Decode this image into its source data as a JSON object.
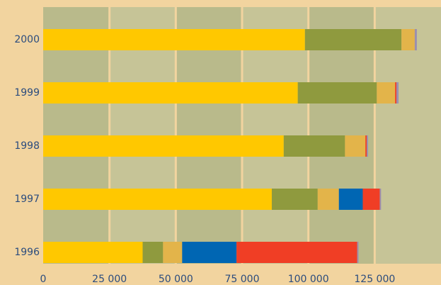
{
  "chart_data": {
    "type": "stacked-barh",
    "categories": [
      "1996",
      "1997",
      "1998",
      "1999",
      "2000"
    ],
    "series": [
      {
        "color": "#ffc800",
        "values": [
          37500,
          86200,
          90700,
          96000,
          98700
        ]
      },
      {
        "color": "#8f9a3e",
        "values": [
          7700,
          17300,
          23100,
          29800,
          36400
        ]
      },
      {
        "color": "#e3b44a",
        "values": [
          7200,
          8000,
          7700,
          6900,
          5000
        ]
      },
      {
        "color": "#0066b3",
        "values": [
          20500,
          9000,
          0,
          0,
          0
        ]
      },
      {
        "color": "#f03e25",
        "values": [
          45500,
          6400,
          500,
          500,
          0
        ]
      },
      {
        "color": "#9a8fb0",
        "values": [
          500,
          500,
          500,
          800,
          800
        ]
      }
    ],
    "xlim": [
      0,
      150000
    ],
    "xticks": [
      0,
      {
        "value": 25000,
        "label": "25 000"
      },
      {
        "value": 50000,
        "label": "50 000"
      },
      {
        "value": 75000,
        "label": "75 000"
      },
      {
        "value": 100000,
        "label": "100 000"
      },
      {
        "value": 125000,
        "label": "125 000"
      }
    ],
    "grid": true
  }
}
